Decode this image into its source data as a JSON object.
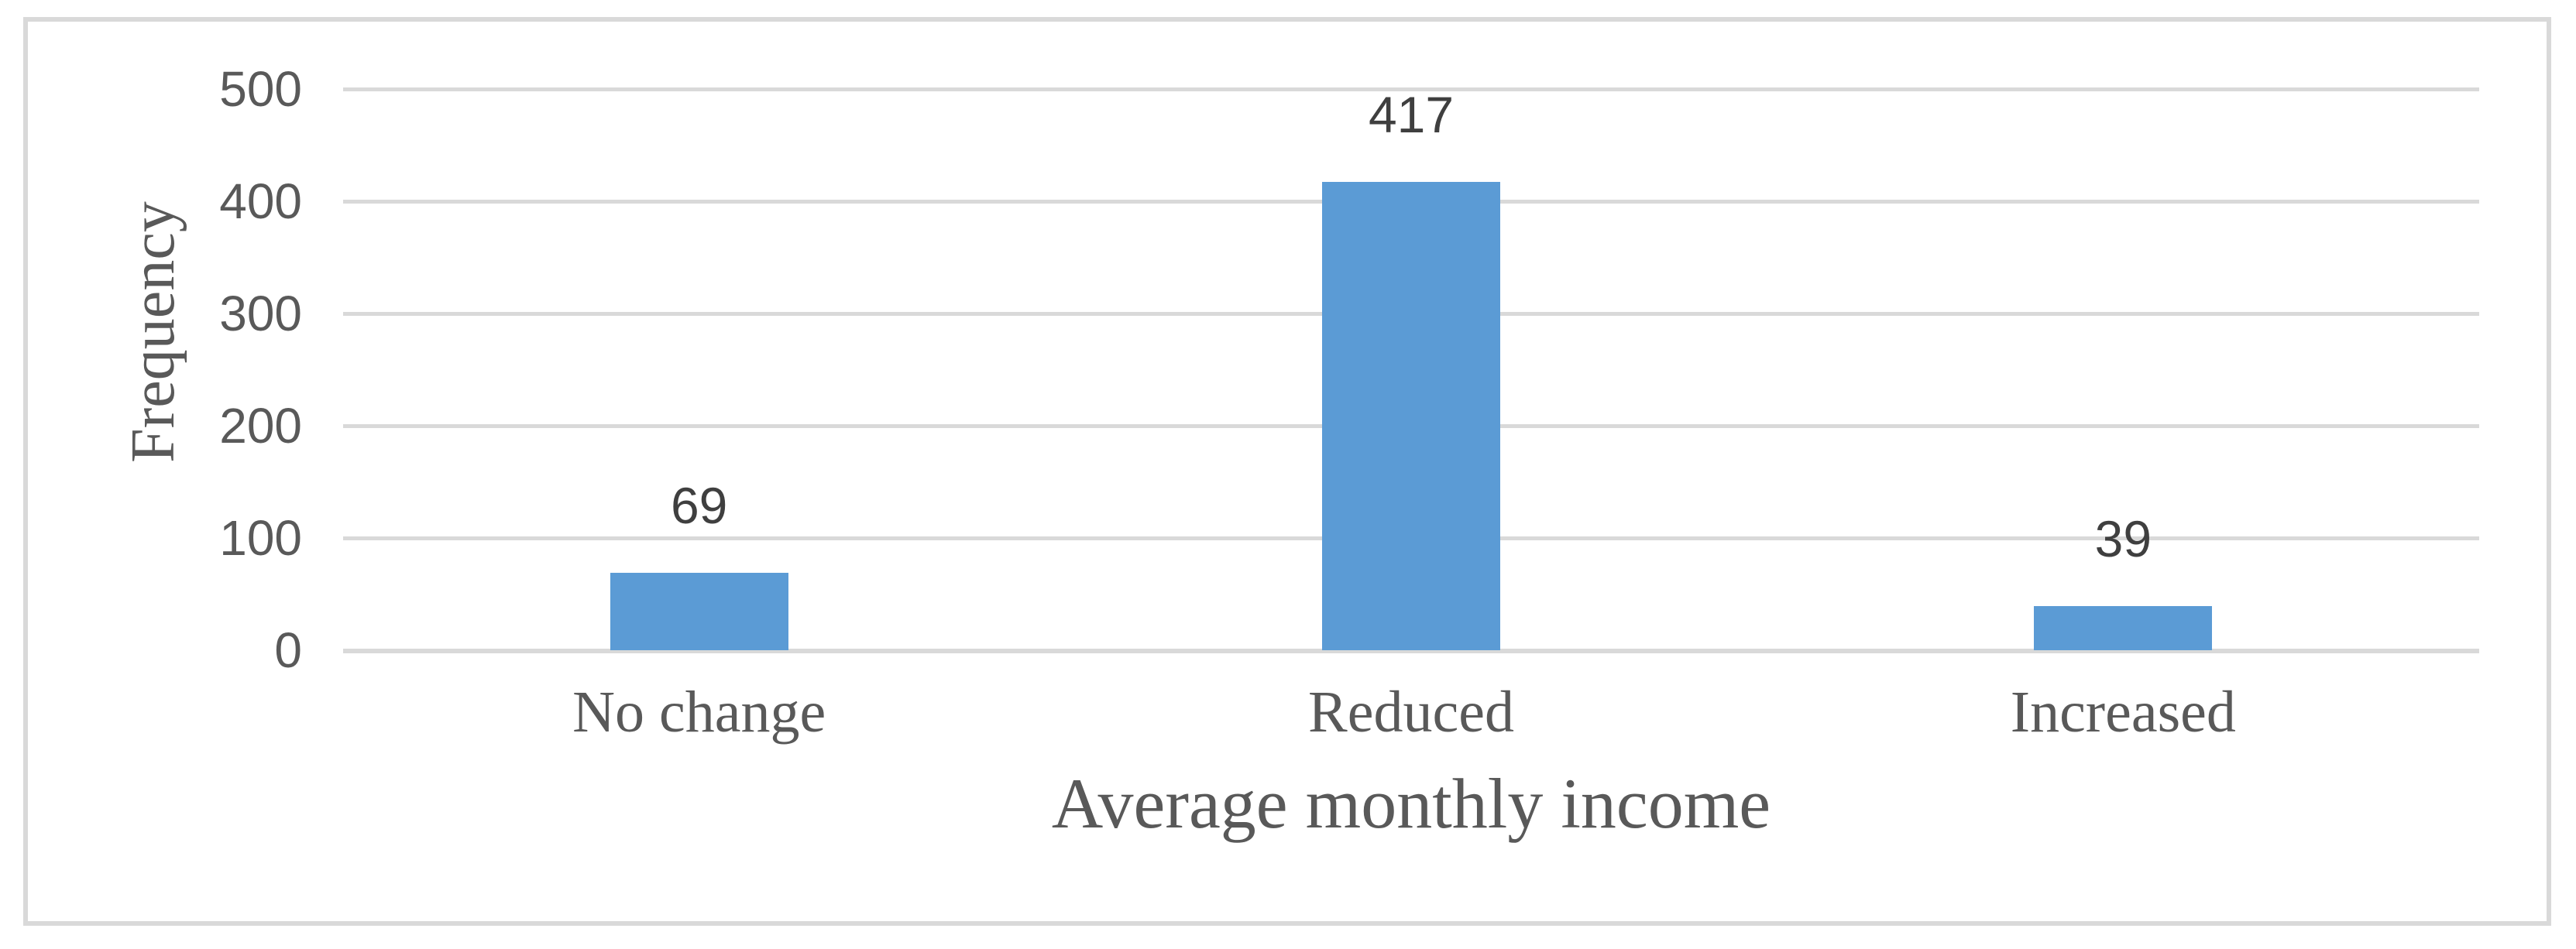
{
  "chart_data": {
    "type": "bar",
    "categories": [
      "No change",
      "Reduced",
      "Increased"
    ],
    "values": [
      69,
      417,
      39
    ],
    "data_labels": [
      "69",
      "417",
      "39"
    ],
    "title": "",
    "xlabel": "Average monthly income",
    "ylabel": "Frequency",
    "ylim": [
      0,
      500
    ],
    "yticks": [
      0,
      100,
      200,
      300,
      400,
      500
    ],
    "grid": true,
    "legend": false,
    "bar_color": "#5B9BD5"
  },
  "colors": {
    "bar": "#5B9BD5",
    "grid": "#D9D9D9",
    "axis_line": "#D9D9D9",
    "border": "#D9D9D9",
    "axis_text": "#595959",
    "data_label_text": "#3F3F3F",
    "background": "#FFFFFF"
  }
}
